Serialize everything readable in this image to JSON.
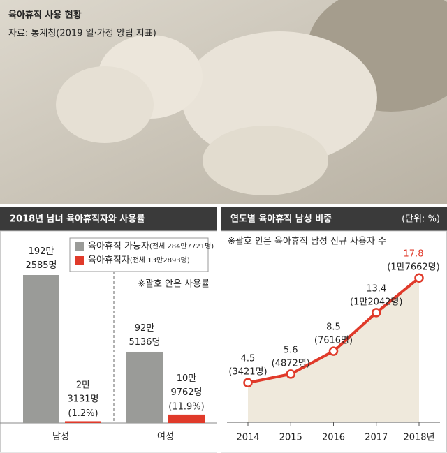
{
  "header": {
    "title": "육아휴직 사용 현황",
    "source": "자료: 통계청(2019 일·가정 양립 지표)"
  },
  "chart_data": [
    {
      "type": "bar",
      "title": "2018년 남녀 육아휴직자와 사용률",
      "categories": [
        "남성",
        "여성"
      ],
      "series": [
        {
          "name": "육아휴직 가능자",
          "total_label": "(전체 284만7721명)",
          "color": "#9a9b98",
          "values": [
            1922585,
            925136
          ],
          "value_labels": [
            "192만\n2585명",
            "92만\n5136명"
          ]
        },
        {
          "name": "육아휴직자",
          "total_label": "(전체 13만2893명)",
          "color": "#e03a2a",
          "values": [
            23131,
            109762
          ],
          "value_labels": [
            "2만\n3131명",
            "10만\n9762명"
          ]
        }
      ],
      "usage_rate": {
        "values": [
          1.2,
          11.9
        ],
        "value_labels": [
          "(1.2%)",
          "(11.9%)"
        ]
      },
      "note": "※괄호 안은 사용률"
    },
    {
      "type": "line",
      "title": "연도별 육아휴직 남성 비중",
      "unit": "(단위: %)",
      "note": "※괄호 안은 육아휴직 남성 신규 사용자 수",
      "categories": [
        "2014",
        "2015",
        "2016",
        "2017",
        "2018년"
      ],
      "color": "#e03a2a",
      "area_color": "#efe9dc",
      "values": [
        4.5,
        5.6,
        8.5,
        13.4,
        17.8
      ],
      "counts": {
        "values": [
          3421,
          4872,
          7616,
          12042,
          17662
        ],
        "value_labels": [
          "(3421명)",
          "(4872명)",
          "(7616명)",
          "(1만2042명)",
          "(1만7662명)"
        ]
      }
    }
  ]
}
